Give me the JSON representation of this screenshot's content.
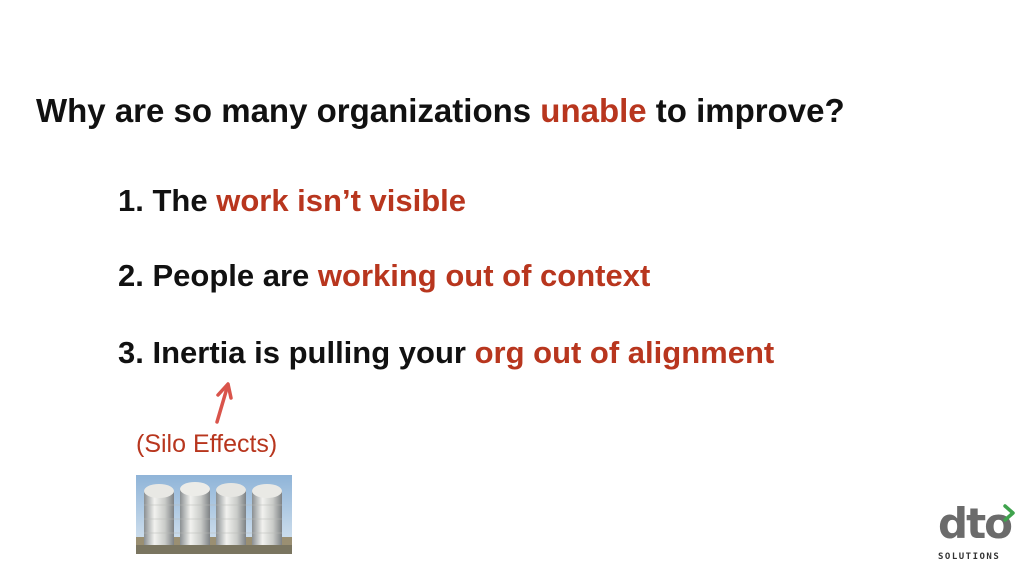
{
  "title": {
    "prefix": "Why are so many organizations ",
    "highlight": "unable",
    "suffix": " to improve?"
  },
  "items": [
    {
      "number": "1.",
      "lead": " The ",
      "highlight": "work isn’t visible"
    },
    {
      "number": "2.",
      "lead": " People are ",
      "highlight": "working out of context"
    },
    {
      "number": "3.",
      "lead": " Inertia is pulling your ",
      "highlight": "org out of alignment"
    }
  ],
  "annotation": {
    "caption": "(Silo Effects)",
    "arrow_icon": "hand-drawn-arrow-icon",
    "image": "grain-silos-photo"
  },
  "logo": {
    "letters": "dto",
    "subtitle": "SOLUTIONS",
    "chevron_icon": "chevron-right-icon"
  },
  "colors": {
    "text": "#111111",
    "accent": "#b8361e",
    "logo_gray": "#6b6b6b",
    "logo_green": "#3fa34d"
  }
}
